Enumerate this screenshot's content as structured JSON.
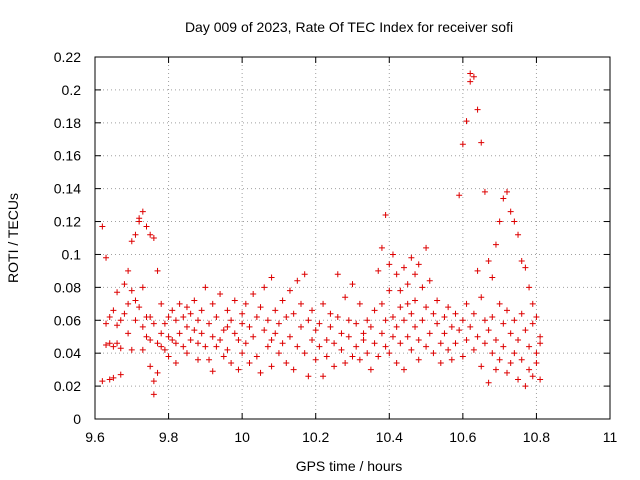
{
  "chart_data": {
    "type": "scatter",
    "title": "Day 009 of 2023, Rate Of TEC Index for receiver sofi",
    "xlabel": "GPS time / hours",
    "ylabel": "ROTI / TECUs",
    "xlim": [
      9.6,
      11.0
    ],
    "ylim": [
      0,
      0.22
    ],
    "xticks": [
      "9.6",
      "9.8",
      "10",
      "10.2",
      "10.4",
      "10.6",
      "10.8",
      "11"
    ],
    "yticks": [
      "0",
      "0.02",
      "0.04",
      "0.06",
      "0.08",
      "0.1",
      "0.12",
      "0.14",
      "0.16",
      "0.18",
      "0.2",
      "0.22"
    ],
    "grid": true,
    "marker": "+",
    "color": "#dd0000",
    "series": [
      {
        "points": [
          [
            9.62,
            0.117
          ],
          [
            9.62,
            0.023
          ],
          [
            9.63,
            0.045
          ],
          [
            9.63,
            0.058
          ],
          [
            9.63,
            0.098
          ],
          [
            9.64,
            0.024
          ],
          [
            9.64,
            0.046
          ],
          [
            9.64,
            0.062
          ],
          [
            9.65,
            0.025
          ],
          [
            9.65,
            0.044
          ],
          [
            9.65,
            0.066
          ],
          [
            9.66,
            0.046
          ],
          [
            9.66,
            0.057
          ],
          [
            9.66,
            0.077
          ],
          [
            9.67,
            0.027
          ],
          [
            9.67,
            0.043
          ],
          [
            9.67,
            0.06
          ],
          [
            9.68,
            0.064
          ],
          [
            9.68,
            0.082
          ],
          [
            9.69,
            0.07
          ],
          [
            9.69,
            0.09
          ],
          [
            9.69,
            0.052
          ],
          [
            9.7,
            0.108
          ],
          [
            9.7,
            0.042
          ],
          [
            9.7,
            0.078
          ],
          [
            9.71,
            0.112
          ],
          [
            9.71,
            0.06
          ],
          [
            9.71,
            0.072
          ],
          [
            9.72,
            0.122
          ],
          [
            9.72,
            0.12
          ],
          [
            9.72,
            0.068
          ],
          [
            9.73,
            0.126
          ],
          [
            9.73,
            0.08
          ],
          [
            9.73,
            0.042
          ],
          [
            9.73,
            0.056
          ],
          [
            9.74,
            0.117
          ],
          [
            9.74,
            0.062
          ],
          [
            9.74,
            0.05
          ],
          [
            9.75,
            0.112
          ],
          [
            9.75,
            0.048
          ],
          [
            9.75,
            0.062
          ],
          [
            9.75,
            0.032
          ],
          [
            9.76,
            0.11
          ],
          [
            9.76,
            0.023
          ],
          [
            9.76,
            0.058
          ],
          [
            9.76,
            0.015
          ],
          [
            9.77,
            0.09
          ],
          [
            9.77,
            0.028
          ],
          [
            9.77,
            0.046
          ],
          [
            9.78,
            0.044
          ],
          [
            9.78,
            0.052
          ],
          [
            9.78,
            0.07
          ],
          [
            9.79,
            0.058
          ],
          [
            9.79,
            0.042
          ],
          [
            9.8,
            0.062
          ],
          [
            9.8,
            0.05
          ],
          [
            9.8,
            0.038
          ],
          [
            9.81,
            0.048
          ],
          [
            9.81,
            0.066
          ],
          [
            9.82,
            0.046
          ],
          [
            9.82,
            0.034
          ],
          [
            9.82,
            0.06
          ],
          [
            9.83,
            0.052
          ],
          [
            9.83,
            0.07
          ],
          [
            9.84,
            0.044
          ],
          [
            9.84,
            0.062
          ],
          [
            9.85,
            0.056
          ],
          [
            9.85,
            0.04
          ],
          [
            9.85,
            0.068
          ],
          [
            9.86,
            0.064
          ],
          [
            9.86,
            0.048
          ],
          [
            9.87,
            0.054
          ],
          [
            9.87,
            0.072
          ],
          [
            9.88,
            0.036
          ],
          [
            9.88,
            0.046
          ],
          [
            9.88,
            0.06
          ],
          [
            9.89,
            0.066
          ],
          [
            9.89,
            0.052
          ],
          [
            9.9,
            0.08
          ],
          [
            9.9,
            0.044
          ],
          [
            9.91,
            0.058
          ],
          [
            9.91,
            0.036
          ],
          [
            9.92,
            0.05
          ],
          [
            9.92,
            0.07
          ],
          [
            9.92,
            0.029
          ],
          [
            9.93,
            0.044
          ],
          [
            9.93,
            0.062
          ],
          [
            9.94,
            0.048
          ],
          [
            9.94,
            0.076
          ],
          [
            9.95,
            0.054
          ],
          [
            9.95,
            0.038
          ],
          [
            9.96,
            0.066
          ],
          [
            9.96,
            0.042
          ],
          [
            9.96,
            0.056
          ],
          [
            9.97,
            0.06
          ],
          [
            9.97,
            0.034
          ],
          [
            9.98,
            0.052
          ],
          [
            9.98,
            0.072
          ],
          [
            9.99,
            0.048
          ],
          [
            9.99,
            0.03
          ],
          [
            10.0,
            0.058
          ],
          [
            10.0,
            0.064
          ],
          [
            10.0,
            0.04
          ],
          [
            10.01,
            0.07
          ],
          [
            10.01,
            0.046
          ],
          [
            10.02,
            0.034
          ],
          [
            10.02,
            0.056
          ],
          [
            10.03,
            0.076
          ],
          [
            10.03,
            0.05
          ],
          [
            10.04,
            0.062
          ],
          [
            10.04,
            0.038
          ],
          [
            10.05,
            0.068
          ],
          [
            10.05,
            0.028
          ],
          [
            10.06,
            0.054
          ],
          [
            10.06,
            0.08
          ],
          [
            10.07,
            0.044
          ],
          [
            10.07,
            0.06
          ],
          [
            10.08,
            0.086
          ],
          [
            10.08,
            0.048
          ],
          [
            10.08,
            0.032
          ],
          [
            10.09,
            0.066
          ],
          [
            10.09,
            0.052
          ],
          [
            10.1,
            0.058
          ],
          [
            10.1,
            0.04
          ],
          [
            10.11,
            0.072
          ],
          [
            10.11,
            0.046
          ],
          [
            10.12,
            0.062
          ],
          [
            10.12,
            0.034
          ],
          [
            10.13,
            0.078
          ],
          [
            10.13,
            0.05
          ],
          [
            10.14,
            0.03
          ],
          [
            10.14,
            0.064
          ],
          [
            10.15,
            0.084
          ],
          [
            10.15,
            0.044
          ],
          [
            10.16,
            0.056
          ],
          [
            10.16,
            0.07
          ],
          [
            10.17,
            0.088
          ],
          [
            10.17,
            0.04
          ],
          [
            10.18,
            0.026
          ],
          [
            10.18,
            0.06
          ],
          [
            10.19,
            0.048
          ],
          [
            10.19,
            0.066
          ],
          [
            10.2,
            0.036
          ],
          [
            10.2,
            0.054
          ],
          [
            10.21,
            0.058
          ],
          [
            10.21,
            0.044
          ],
          [
            10.22,
            0.026
          ],
          [
            10.22,
            0.07
          ],
          [
            10.23,
            0.048
          ],
          [
            10.23,
            0.038
          ],
          [
            10.24,
            0.056
          ],
          [
            10.24,
            0.064
          ],
          [
            10.25,
            0.032
          ],
          [
            10.25,
            0.046
          ],
          [
            10.26,
            0.062
          ],
          [
            10.26,
            0.088
          ],
          [
            10.27,
            0.042
          ],
          [
            10.27,
            0.052
          ],
          [
            10.28,
            0.074
          ],
          [
            10.28,
            0.034
          ],
          [
            10.29,
            0.05
          ],
          [
            10.29,
            0.06
          ],
          [
            10.3,
            0.038
          ],
          [
            10.3,
            0.082
          ],
          [
            10.31,
            0.058
          ],
          [
            10.31,
            0.044
          ],
          [
            10.32,
            0.036
          ],
          [
            10.32,
            0.07
          ],
          [
            10.33,
            0.048
          ],
          [
            10.33,
            0.052
          ],
          [
            10.34,
            0.04
          ],
          [
            10.34,
            0.06
          ],
          [
            10.35,
            0.03
          ],
          [
            10.35,
            0.056
          ],
          [
            10.36,
            0.046
          ],
          [
            10.36,
            0.066
          ],
          [
            10.37,
            0.09
          ],
          [
            10.37,
            0.038
          ],
          [
            10.38,
            0.104
          ],
          [
            10.38,
            0.052
          ],
          [
            10.38,
            0.07
          ],
          [
            10.39,
            0.124
          ],
          [
            10.39,
            0.06
          ],
          [
            10.39,
            0.044
          ],
          [
            10.4,
            0.094
          ],
          [
            10.4,
            0.078
          ],
          [
            10.4,
            0.04
          ],
          [
            10.41,
            0.1
          ],
          [
            10.41,
            0.062
          ],
          [
            10.41,
            0.05
          ],
          [
            10.42,
            0.088
          ],
          [
            10.42,
            0.056
          ],
          [
            10.42,
            0.034
          ],
          [
            10.43,
            0.078
          ],
          [
            10.43,
            0.068
          ],
          [
            10.43,
            0.046
          ],
          [
            10.44,
            0.092
          ],
          [
            10.44,
            0.06
          ],
          [
            10.44,
            0.03
          ],
          [
            10.45,
            0.082
          ],
          [
            10.45,
            0.05
          ],
          [
            10.45,
            0.07
          ],
          [
            10.46,
            0.098
          ],
          [
            10.46,
            0.064
          ],
          [
            10.46,
            0.042
          ],
          [
            10.47,
            0.088
          ],
          [
            10.47,
            0.072
          ],
          [
            10.47,
            0.056
          ],
          [
            10.48,
            0.094
          ],
          [
            10.48,
            0.048
          ],
          [
            10.48,
            0.036
          ],
          [
            10.49,
            0.08
          ],
          [
            10.49,
            0.06
          ],
          [
            10.5,
            0.104
          ],
          [
            10.5,
            0.044
          ],
          [
            10.5,
            0.068
          ],
          [
            10.51,
            0.084
          ],
          [
            10.51,
            0.052
          ],
          [
            10.52,
            0.064
          ],
          [
            10.52,
            0.04
          ],
          [
            10.53,
            0.058
          ],
          [
            10.53,
            0.072
          ],
          [
            10.54,
            0.046
          ],
          [
            10.54,
            0.034
          ],
          [
            10.55,
            0.062
          ],
          [
            10.55,
            0.052
          ],
          [
            10.56,
            0.042
          ],
          [
            10.56,
            0.068
          ],
          [
            10.57,
            0.056
          ],
          [
            10.57,
            0.036
          ],
          [
            10.58,
            0.064
          ],
          [
            10.58,
            0.046
          ],
          [
            10.59,
            0.136
          ],
          [
            10.59,
            0.054
          ],
          [
            10.6,
            0.167
          ],
          [
            10.6,
            0.06
          ],
          [
            10.6,
            0.038
          ],
          [
            10.61,
            0.181
          ],
          [
            10.61,
            0.07
          ],
          [
            10.61,
            0.048
          ],
          [
            10.62,
            0.205
          ],
          [
            10.62,
            0.21
          ],
          [
            10.62,
            0.056
          ],
          [
            10.63,
            0.208
          ],
          [
            10.63,
            0.064
          ],
          [
            10.63,
            0.042
          ],
          [
            10.64,
            0.188
          ],
          [
            10.64,
            0.09
          ],
          [
            10.64,
            0.05
          ],
          [
            10.65,
            0.168
          ],
          [
            10.65,
            0.074
          ],
          [
            10.65,
            0.032
          ],
          [
            10.66,
            0.138
          ],
          [
            10.66,
            0.06
          ],
          [
            10.66,
            0.046
          ],
          [
            10.67,
            0.096
          ],
          [
            10.67,
            0.054
          ],
          [
            10.67,
            0.022
          ],
          [
            10.68,
            0.086
          ],
          [
            10.68,
            0.062
          ],
          [
            10.68,
            0.04
          ],
          [
            10.69,
            0.106
          ],
          [
            10.69,
            0.048
          ],
          [
            10.69,
            0.03
          ],
          [
            10.7,
            0.12
          ],
          [
            10.7,
            0.07
          ],
          [
            10.7,
            0.036
          ],
          [
            10.71,
            0.134
          ],
          [
            10.71,
            0.058
          ],
          [
            10.71,
            0.044
          ],
          [
            10.72,
            0.138
          ],
          [
            10.72,
            0.066
          ],
          [
            10.72,
            0.028
          ],
          [
            10.73,
            0.126
          ],
          [
            10.73,
            0.052
          ],
          [
            10.73,
            0.034
          ],
          [
            10.74,
            0.12
          ],
          [
            10.74,
            0.06
          ],
          [
            10.74,
            0.04
          ],
          [
            10.75,
            0.112
          ],
          [
            10.75,
            0.048
          ],
          [
            10.75,
            0.024
          ],
          [
            10.76,
            0.096
          ],
          [
            10.76,
            0.064
          ],
          [
            10.76,
            0.036
          ],
          [
            10.77,
            0.092
          ],
          [
            10.77,
            0.054
          ],
          [
            10.77,
            0.02
          ],
          [
            10.78,
            0.08
          ],
          [
            10.78,
            0.044
          ],
          [
            10.78,
            0.03
          ],
          [
            10.79,
            0.07
          ],
          [
            10.79,
            0.058
          ],
          [
            10.79,
            0.026
          ],
          [
            10.8,
            0.062
          ],
          [
            10.8,
            0.04
          ],
          [
            10.8,
            0.034
          ],
          [
            10.81,
            0.046
          ],
          [
            10.81,
            0.024
          ],
          [
            10.81,
            0.05
          ]
        ]
      }
    ]
  }
}
